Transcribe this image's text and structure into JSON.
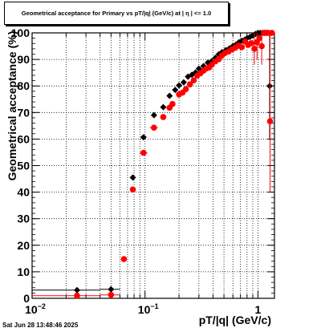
{
  "title": "Geometrical acceptance for Primary vs pT/|q| (GeV/c) at |  η  | <= 1.0",
  "timestamp": "Sat Jun 28 13:48:46 2025",
  "chart_data": {
    "type": "scatter",
    "title": "Geometrical acceptance for Primary vs pT/|q| (GeV/c) at |  η  | <= 1.0",
    "xlabel": "pT/|q| (GeV/c)",
    "ylabel": "Geometrical acceptance (%)",
    "xscale": "log",
    "xlim": [
      0.01,
      1.4
    ],
    "ylim": [
      0,
      100
    ],
    "grid": true,
    "x_tick_labels": [
      {
        "value": 0.01,
        "base": "10",
        "exp": "−2"
      },
      {
        "value": 0.1,
        "base": "10",
        "exp": "−1"
      },
      {
        "value": 1,
        "base": "1",
        "exp": ""
      }
    ],
    "y_ticks": [
      0,
      10,
      20,
      30,
      40,
      50,
      60,
      70,
      80,
      90,
      100
    ],
    "series": [
      {
        "color": "#000000",
        "marker": "diamond",
        "points": [
          {
            "x": 0.025,
            "y": 3.1,
            "xlo": 0.01,
            "xhi": 0.04
          },
          {
            "x": 0.05,
            "y": 3.4,
            "xlo": 0.04,
            "xhi": 0.06
          },
          {
            "x": 0.078,
            "y": 45.5
          },
          {
            "x": 0.097,
            "y": 60.7
          },
          {
            "x": 0.12,
            "y": 69.0
          },
          {
            "x": 0.145,
            "y": 72.0
          },
          {
            "x": 0.165,
            "y": 76.3
          },
          {
            "x": 0.185,
            "y": 78.5
          },
          {
            "x": 0.2,
            "y": 80.2
          },
          {
            "x": 0.22,
            "y": 81.4
          },
          {
            "x": 0.24,
            "y": 83.5
          },
          {
            "x": 0.26,
            "y": 84.2
          },
          {
            "x": 0.28,
            "y": 85.1
          },
          {
            "x": 0.3,
            "y": 86.5
          },
          {
            "x": 0.33,
            "y": 87.5
          },
          {
            "x": 0.36,
            "y": 88.8
          },
          {
            "x": 0.39,
            "y": 89.4
          },
          {
            "x": 0.42,
            "y": 90.6
          },
          {
            "x": 0.45,
            "y": 91.9
          },
          {
            "x": 0.48,
            "y": 92.7
          },
          {
            "x": 0.52,
            "y": 93.5
          },
          {
            "x": 0.56,
            "y": 94.2
          },
          {
            "x": 0.6,
            "y": 95.0
          },
          {
            "x": 0.64,
            "y": 95.6
          },
          {
            "x": 0.68,
            "y": 96.5
          },
          {
            "x": 0.72,
            "y": 97.0
          },
          {
            "x": 0.76,
            "y": 97.3
          },
          {
            "x": 0.8,
            "y": 98.0
          },
          {
            "x": 0.85,
            "y": 98.5
          },
          {
            "x": 0.9,
            "y": 99.0
          },
          {
            "x": 0.95,
            "y": 99.6
          },
          {
            "x": 1.0,
            "y": 100.0
          },
          {
            "x": 1.05,
            "y": 100.0
          },
          {
            "x": 1.1,
            "y": 100.0
          },
          {
            "x": 1.15,
            "y": 100.0
          },
          {
            "x": 1.2,
            "y": 100.0
          },
          {
            "x": 1.27,
            "y": 80.0,
            "ylo": 60,
            "yhi": 100
          },
          {
            "x": 1.32,
            "y": 100.0
          }
        ]
      },
      {
        "color": "#ff0000",
        "marker": "circle",
        "points": [
          {
            "x": 0.025,
            "y": 1.0,
            "xlo": 0.01,
            "xhi": 0.04
          },
          {
            "x": 0.05,
            "y": 1.3,
            "xlo": 0.04,
            "xhi": 0.06
          },
          {
            "x": 0.065,
            "y": 14.8
          },
          {
            "x": 0.078,
            "y": 41.0
          },
          {
            "x": 0.097,
            "y": 54.8,
            "xlo": 0.09,
            "xhi": 0.105
          },
          {
            "x": 0.12,
            "y": 64.3,
            "xlo": 0.11,
            "xhi": 0.13
          },
          {
            "x": 0.145,
            "y": 68.3
          },
          {
            "x": 0.165,
            "y": 71.8
          },
          {
            "x": 0.175,
            "y": 73.2
          },
          {
            "x": 0.2,
            "y": 76.8
          },
          {
            "x": 0.215,
            "y": 77.5
          },
          {
            "x": 0.23,
            "y": 78.8
          },
          {
            "x": 0.25,
            "y": 80.6
          },
          {
            "x": 0.27,
            "y": 82.1
          },
          {
            "x": 0.29,
            "y": 83.9
          },
          {
            "x": 0.31,
            "y": 84.8
          },
          {
            "x": 0.33,
            "y": 85.8
          },
          {
            "x": 0.35,
            "y": 86.6
          },
          {
            "x": 0.37,
            "y": 87.0
          },
          {
            "x": 0.39,
            "y": 88.0
          },
          {
            "x": 0.42,
            "y": 89.3
          },
          {
            "x": 0.45,
            "y": 90.1
          },
          {
            "x": 0.48,
            "y": 91.5
          },
          {
            "x": 0.51,
            "y": 92.4
          },
          {
            "x": 0.55,
            "y": 93.0
          },
          {
            "x": 0.59,
            "y": 93.8
          },
          {
            "x": 0.63,
            "y": 94.4
          },
          {
            "x": 0.67,
            "y": 95.2
          },
          {
            "x": 0.72,
            "y": 94.6
          },
          {
            "x": 0.77,
            "y": 96.7
          },
          {
            "x": 0.82,
            "y": 95.5
          },
          {
            "x": 0.87,
            "y": 96.1
          },
          {
            "x": 0.93,
            "y": 94.0,
            "ylo": 88,
            "yhi": 100
          },
          {
            "x": 0.98,
            "y": 96.5,
            "ylo": 90,
            "yhi": 100
          },
          {
            "x": 1.03,
            "y": 98.0
          },
          {
            "x": 1.08,
            "y": 95.0,
            "ylo": 88,
            "yhi": 100
          },
          {
            "x": 1.13,
            "y": 100.0
          },
          {
            "x": 1.18,
            "y": 100.0
          },
          {
            "x": 1.24,
            "y": 100.0
          },
          {
            "x": 1.28,
            "y": 66.7,
            "ylo": 40,
            "yhi": 100
          },
          {
            "x": 1.33,
            "y": 100.0
          }
        ]
      }
    ]
  }
}
